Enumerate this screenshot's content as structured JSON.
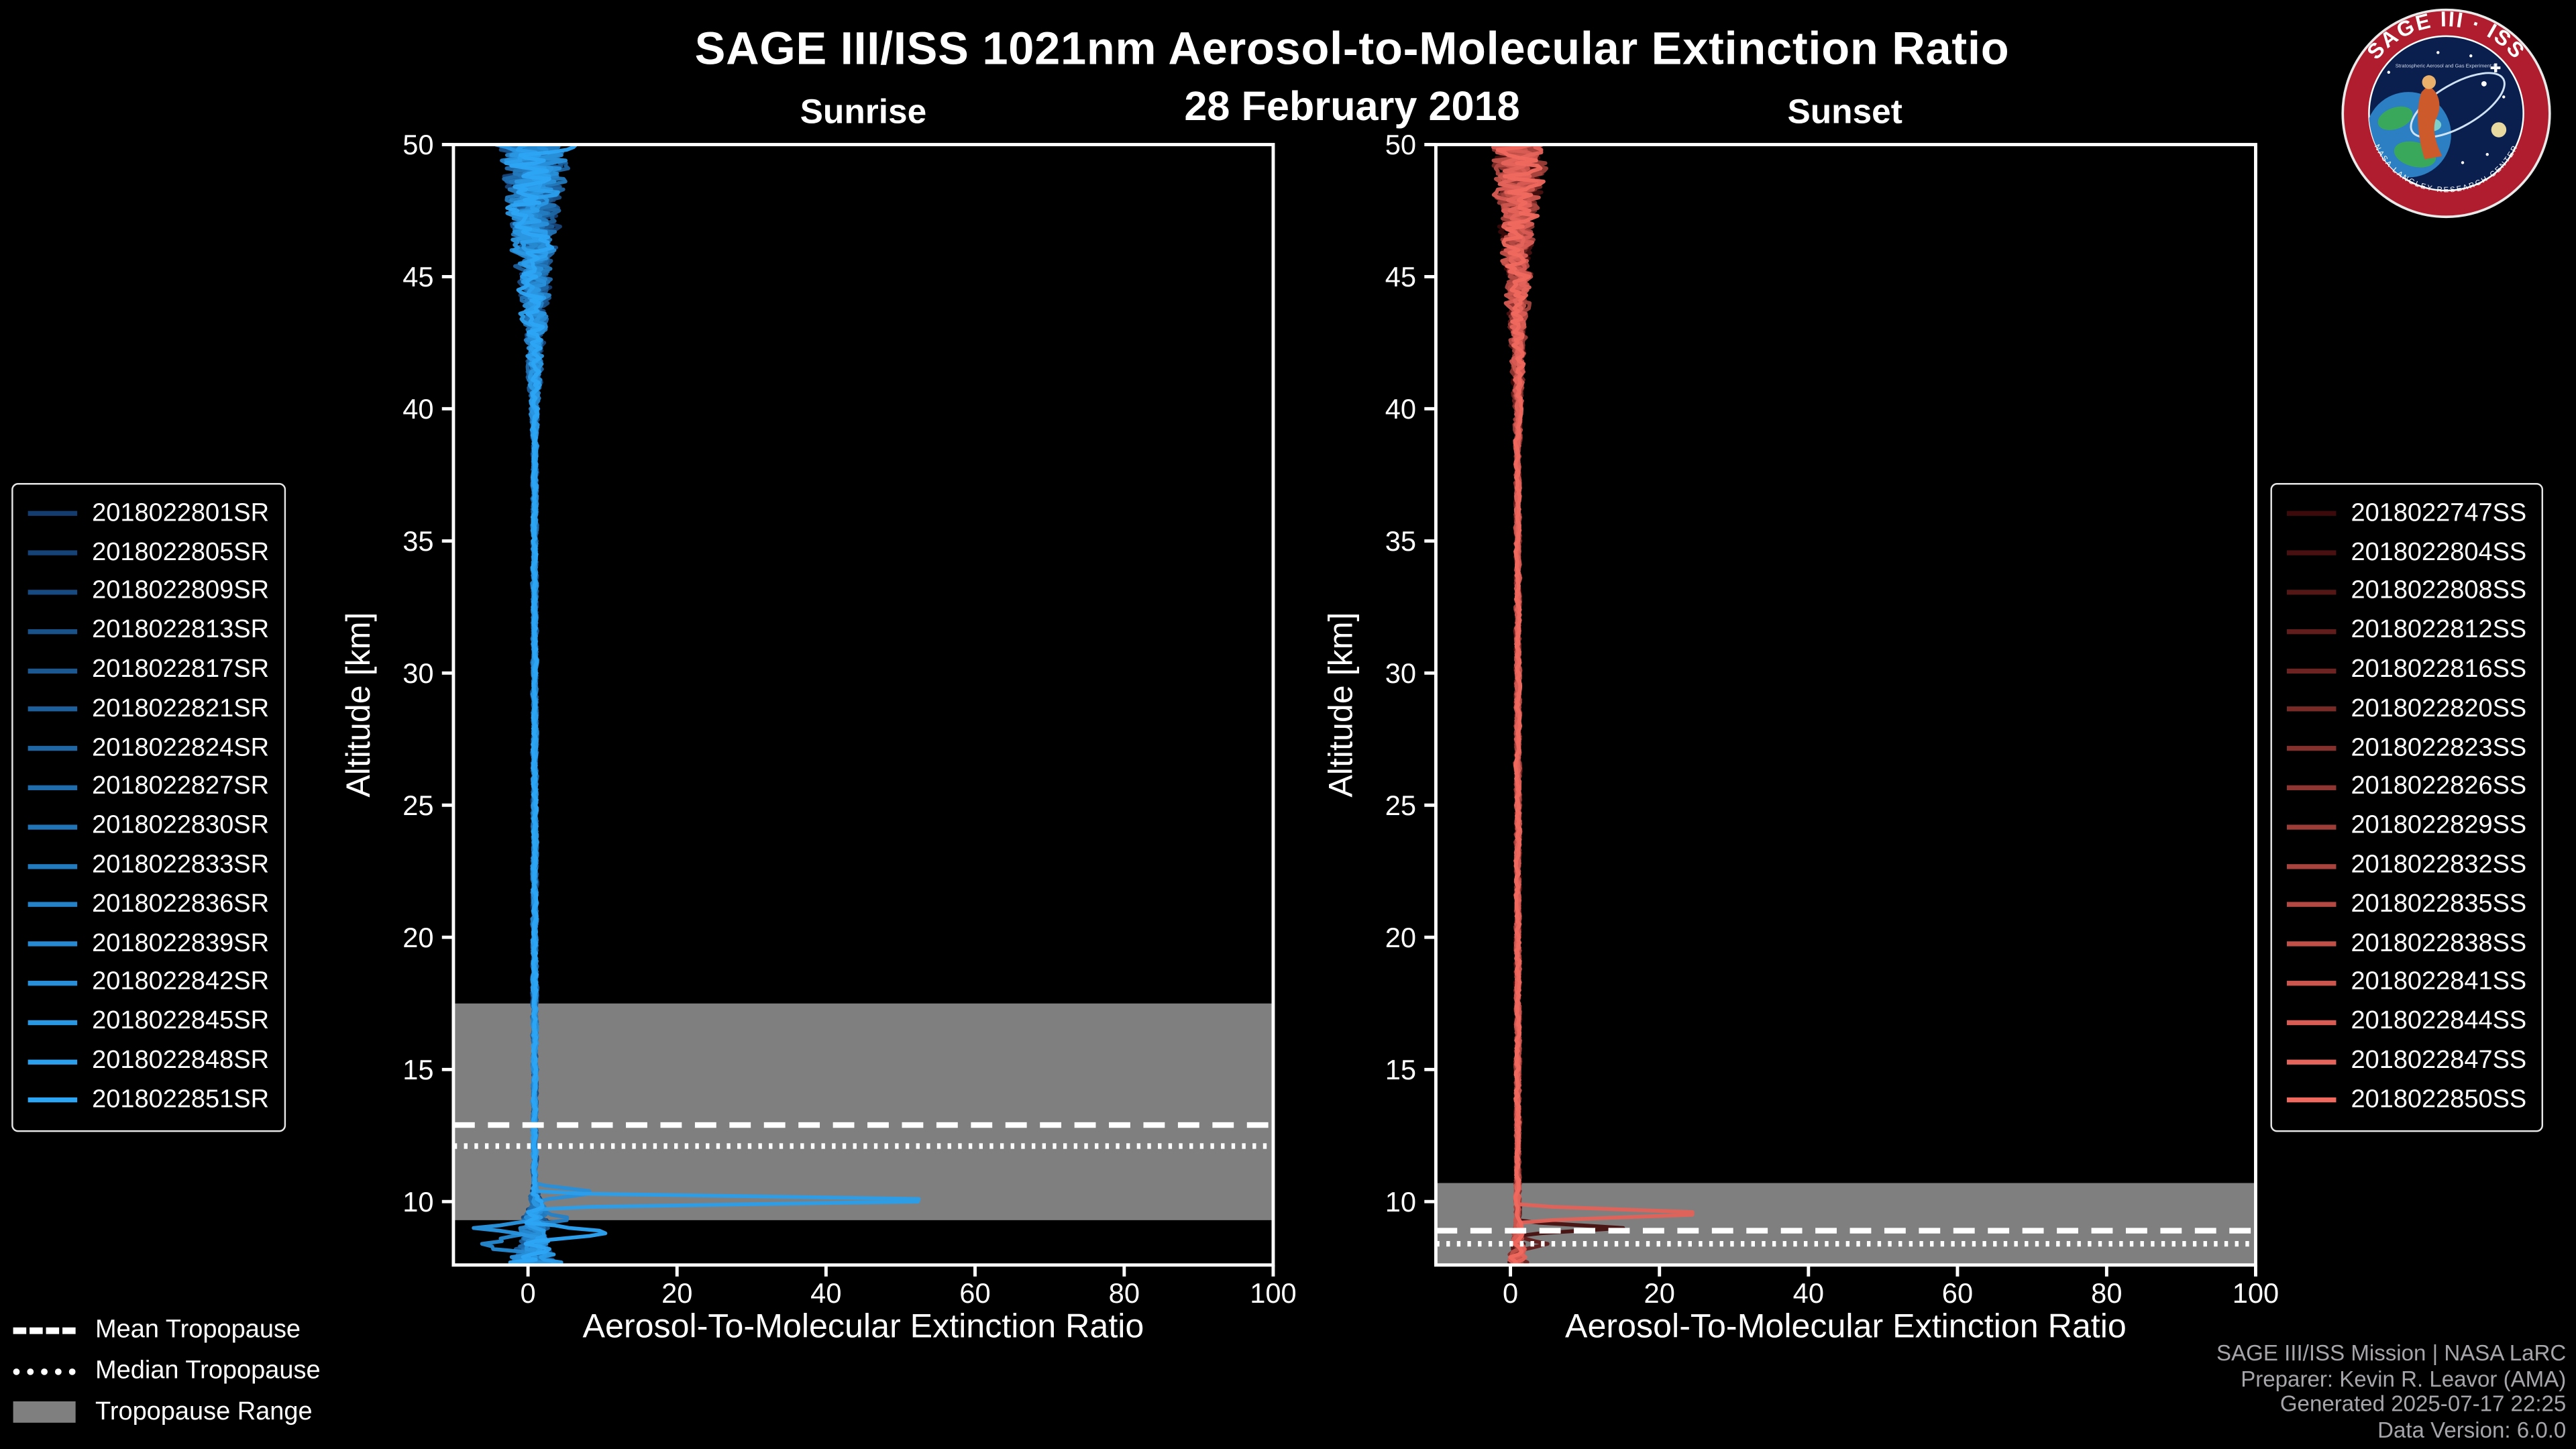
{
  "header": {
    "title": "SAGE III/ISS 1021nm Aerosol-to-Molecular Extinction Ratio",
    "date": "28 February 2018"
  },
  "logo": {
    "title_text": "SAGE III · ISS",
    "subtitle_text": "Stratospheric Aerosol and Gas Experiment III",
    "ring_text": "NASA LANGLEY RESEARCH CENTER",
    "colors": {
      "ring": "#b01d2e",
      "inner": "#0a1f4e",
      "earth": "#2b7fc2",
      "land": "#3aa85a",
      "sun": "#e8d9a0"
    }
  },
  "colors": {
    "background": "#000000",
    "frame": "#ffffff",
    "tick_text": "#ffffff"
  },
  "tropopause_legend": [
    {
      "label": "Mean Tropopause",
      "style": "dashed"
    },
    {
      "label": "Median Tropopause",
      "style": "dotted"
    },
    {
      "label": "Tropopause Range",
      "style": "patch",
      "color": "#7f7f7f"
    }
  ],
  "footer_lines": [
    "SAGE III/ISS Mission | NASA LaRC",
    "Preparer: Kevin R. Leavor (AMA)",
    "Generated 2025-07-17 22:25",
    "Data Version: 6.0.0"
  ],
  "chart_data": [
    {
      "type": "line",
      "panel": "sunrise",
      "title": "Sunrise",
      "xlabel": "Aerosol-To-Molecular Extinction Ratio",
      "ylabel": "Altitude [km]",
      "xlim": [
        -10,
        100
      ],
      "ylim": [
        7.6,
        50
      ],
      "xticks": [
        0,
        20,
        40,
        60,
        80,
        100
      ],
      "yticks": [
        10,
        15,
        20,
        25,
        30,
        35,
        40,
        45,
        50
      ],
      "grid": false,
      "legend_position": "outside-left",
      "tropopause": {
        "mean_km": 12.9,
        "median_km": 12.1,
        "range_km": [
          9.3,
          17.5
        ],
        "band_color": "#7f7f7f"
      },
      "profile": {
        "baseline_ratio": 0.9,
        "noise_top_amp": 4.2,
        "noise_top_start_km": 38,
        "noise_bottom_amp": 3.0,
        "noise_bottom_start_km": 10.6,
        "seed": 7
      },
      "spikes": [
        {
          "series_index": 14,
          "alt_km": 10.05,
          "value": 63,
          "half_width_km": 0.28
        },
        {
          "series_index": 12,
          "alt_km": 10.35,
          "value": 9,
          "half_width_km": 0.3
        },
        {
          "series_index": 15,
          "alt_km": 8.85,
          "value": 10.5,
          "half_width_km": 0.35
        },
        {
          "series_index": 13,
          "alt_km": 9.0,
          "value": -8,
          "half_width_km": 0.3
        },
        {
          "series_index": 10,
          "alt_km": 9.35,
          "value": 6,
          "half_width_km": 0.3
        },
        {
          "series_index": 11,
          "alt_km": 8.4,
          "value": -7,
          "half_width_km": 0.4
        }
      ],
      "series": [
        {
          "name": "2018022801SR",
          "color": "#143C6E"
        },
        {
          "name": "2018022805SR",
          "color": "#164377"
        },
        {
          "name": "2018022809SR",
          "color": "#174A80"
        },
        {
          "name": "2018022813SR",
          "color": "#195189"
        },
        {
          "name": "2018022817SR",
          "color": "#1B5892"
        },
        {
          "name": "2018022821SR",
          "color": "#1C5F9B"
        },
        {
          "name": "2018022824SR",
          "color": "#1E66A4"
        },
        {
          "name": "2018022827SR",
          "color": "#206DAD"
        },
        {
          "name": "2018022830SR",
          "color": "#2174B6"
        },
        {
          "name": "2018022833SR",
          "color": "#237BBF"
        },
        {
          "name": "2018022836SR",
          "color": "#2582C8"
        },
        {
          "name": "2018022839SR",
          "color": "#2689D1"
        },
        {
          "name": "2018022842SR",
          "color": "#2890DA"
        },
        {
          "name": "2018022845SR",
          "color": "#2A97E3"
        },
        {
          "name": "2018022848SR",
          "color": "#2B9EEC"
        },
        {
          "name": "2018022851SR",
          "color": "#2DA5F5"
        }
      ]
    },
    {
      "type": "line",
      "panel": "sunset",
      "title": "Sunset",
      "xlabel": "Aerosol-To-Molecular Extinction Ratio",
      "ylabel": "Altitude [km]",
      "xlim": [
        -10,
        100
      ],
      "ylim": [
        7.6,
        50
      ],
      "xticks": [
        0,
        20,
        40,
        60,
        80,
        100
      ],
      "yticks": [
        10,
        15,
        20,
        25,
        30,
        35,
        40,
        45,
        50
      ],
      "grid": false,
      "legend_position": "outside-right",
      "tropopause": {
        "mean_km": 8.9,
        "median_km": 8.4,
        "range_km": [
          7.6,
          10.7
        ],
        "band_color": "#7f7f7f"
      },
      "profile": {
        "baseline_ratio": 1.0,
        "noise_top_amp": 3.2,
        "noise_top_start_km": 38,
        "noise_bottom_amp": 0.9,
        "noise_bottom_start_km": 9.3,
        "seed": 21
      },
      "spikes": [
        {
          "series_index": 14,
          "alt_km": 9.55,
          "value": 29,
          "half_width_km": 0.3
        },
        {
          "series_index": 1,
          "alt_km": 9.0,
          "value": 15,
          "half_width_km": 0.25
        },
        {
          "series_index": 3,
          "alt_km": 8.4,
          "value": 5,
          "half_width_km": 0.3
        }
      ],
      "series": [
        {
          "name": "2018022747SS",
          "color": "#3C0A0A"
        },
        {
          "name": "2018022804SS",
          "color": "#481010"
        },
        {
          "name": "2018022808SS",
          "color": "#541715"
        },
        {
          "name": "2018022812SS",
          "color": "#601D1B"
        },
        {
          "name": "2018022816SS",
          "color": "#6C2321"
        },
        {
          "name": "2018022820SS",
          "color": "#782A26"
        },
        {
          "name": "2018022823SS",
          "color": "#84302C"
        },
        {
          "name": "2018022826SS",
          "color": "#903632"
        },
        {
          "name": "2018022829SS",
          "color": "#9C3D38"
        },
        {
          "name": "2018022832SS",
          "color": "#A8433D"
        },
        {
          "name": "2018022835SS",
          "color": "#B44943"
        },
        {
          "name": "2018022838SS",
          "color": "#C05048"
        },
        {
          "name": "2018022841SS",
          "color": "#CC564E"
        },
        {
          "name": "2018022844SS",
          "color": "#D85C54"
        },
        {
          "name": "2018022847SS",
          "color": "#E4635A"
        },
        {
          "name": "2018022850SS",
          "color": "#F0695F"
        }
      ]
    }
  ]
}
